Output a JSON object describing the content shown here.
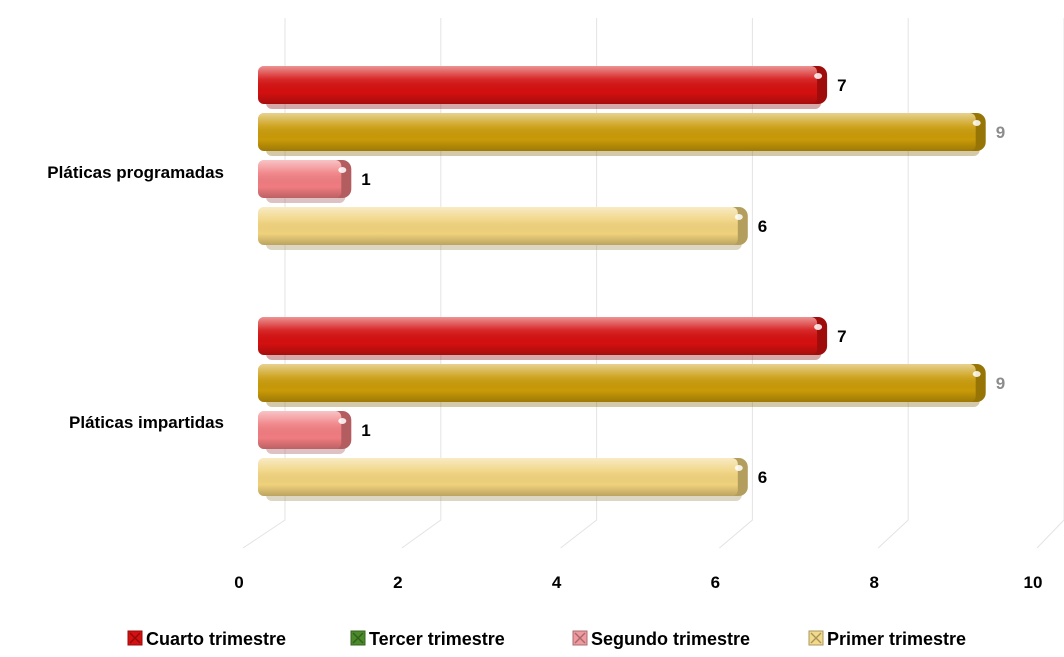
{
  "chart_data": {
    "type": "bar",
    "orientation": "horizontal",
    "categories": [
      "Pláticas programadas",
      "Pláticas impartidas"
    ],
    "series": [
      {
        "name": "Cuarto trimestre",
        "values": [
          7,
          7
        ],
        "color": "#d41010",
        "label_color": "#000000"
      },
      {
        "name": "Tercer trimestre",
        "values": [
          9,
          9
        ],
        "color": "#c99a08",
        "label_color": "#8c8c8c"
      },
      {
        "name": "Segundo trimestre",
        "values": [
          1,
          1
        ],
        "color": "#f07c80",
        "label_color": "#000000"
      },
      {
        "name": "Primer trimestre",
        "values": [
          6,
          6
        ],
        "color": "#f0d27c",
        "label_color": "#000000"
      }
    ],
    "xlim": [
      0,
      10
    ],
    "x_ticks": [
      "0",
      "2",
      "4",
      "6",
      "8",
      "10"
    ],
    "grid": true,
    "legend_position": "bottom",
    "legend_marker_colors": [
      "#d41010",
      "#4a8a2a",
      "#f09aa0",
      "#f3d98a"
    ]
  }
}
